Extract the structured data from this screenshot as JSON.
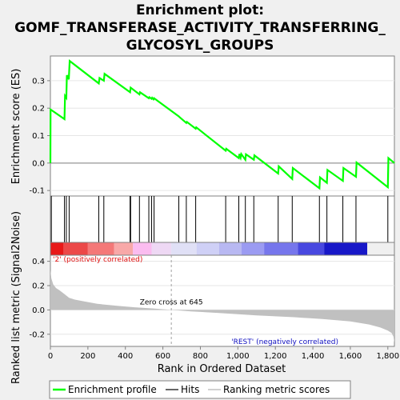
{
  "chart_data": {
    "type": "line",
    "title_lines": [
      "Enrichment plot:",
      "GOMF_TRANSFERASE_ACTIVITY_TRANSFERRING_",
      "GLYCOSYL_GROUPS"
    ],
    "top_panel": {
      "ylabel": "Enrichment score (ES)",
      "ylim": [
        -0.12,
        0.39
      ],
      "yticks": [
        -0.1,
        0.0,
        0.1,
        0.2,
        0.3
      ],
      "ytick_labels": [
        "-0.1",
        "0.0",
        "0.1",
        "0.2",
        "0.3"
      ],
      "series": [
        {
          "name": "Enrichment profile",
          "color": "#00ff00",
          "x": [
            0,
            1,
            75,
            78,
            85,
            88,
            98,
            103,
            258,
            262,
            285,
            289,
            425,
            428,
            475,
            478,
            525,
            528,
            540,
            543,
            550,
            553,
            685,
            688,
            725,
            728,
            775,
            778,
            935,
            938,
            1005,
            1008,
            1015,
            1018,
            1040,
            1043,
            1085,
            1088,
            1215,
            1218,
            1290,
            1293,
            1435,
            1438,
            1475,
            1478,
            1560,
            1563,
            1630,
            1633,
            1800,
            1803,
            1835
          ],
          "y": [
            0.0,
            0.195,
            0.16,
            0.245,
            0.238,
            0.32,
            0.305,
            0.372,
            0.29,
            0.31,
            0.3,
            0.325,
            0.258,
            0.275,
            0.25,
            0.258,
            0.236,
            0.24,
            0.234,
            0.238,
            0.232,
            0.236,
            0.17,
            0.168,
            0.146,
            0.15,
            0.125,
            0.13,
            0.045,
            0.052,
            0.018,
            0.033,
            0.02,
            0.033,
            0.012,
            0.032,
            0.012,
            0.028,
            -0.038,
            -0.012,
            -0.058,
            -0.018,
            -0.092,
            -0.052,
            -0.072,
            -0.025,
            -0.065,
            -0.018,
            -0.05,
            0.002,
            -0.088,
            0.018,
            0.0
          ]
        }
      ]
    },
    "hits": [
      5,
      75,
      85,
      100,
      258,
      285,
      425,
      428,
      475,
      525,
      540,
      553,
      685,
      725,
      775,
      935,
      1005,
      1040,
      1085,
      1215,
      1290,
      1435,
      1475,
      1560,
      1630,
      1800
    ],
    "hits_label": "Hits",
    "heat_bar": {
      "colors": [
        "#e81818",
        "#ec4848",
        "#f47878",
        "#f8a8a8",
        "#fbbcf0",
        "#eed8f4",
        "#e0e0f6",
        "#cfd0f6",
        "#b8b8f2",
        "#9b9bf2",
        "#7676ec",
        "#4848e0",
        "#1818c8"
      ],
      "boundaries": [
        0,
        70,
        200,
        340,
        440,
        540,
        645,
        780,
        900,
        1020,
        1140,
        1320,
        1460,
        1690,
        1835
      ]
    },
    "bottom_panel": {
      "ylabel": "Ranked list metric (Signal2Noise)",
      "ylim": [
        -0.3,
        0.45
      ],
      "yticks": [
        -0.2,
        0.0,
        0.2,
        0.4
      ],
      "ytick_labels": [
        "-0.2",
        "0.0",
        "0.2",
        "0.4"
      ],
      "metric_x": [
        0,
        5,
        15,
        30,
        50,
        75,
        100,
        130,
        180,
        250,
        350,
        450,
        550,
        645,
        750,
        900,
        1100,
        1300,
        1450,
        1600,
        1700,
        1760,
        1800,
        1820,
        1830,
        1835
      ],
      "metric_y": [
        0.33,
        0.26,
        0.21,
        0.18,
        0.16,
        0.13,
        0.1,
        0.085,
        0.07,
        0.05,
        0.035,
        0.022,
        0.012,
        0.0,
        -0.012,
        -0.025,
        -0.045,
        -0.06,
        -0.075,
        -0.095,
        -0.12,
        -0.145,
        -0.17,
        -0.19,
        -0.22,
        -0.27
      ],
      "positive_label": "'2' (positively correlated)",
      "negative_label": "'REST' (negatively correlated)",
      "zero_cross_label": "Zero cross at 645",
      "zero_cross": 645
    },
    "xlabel": "Rank in Ordered Dataset",
    "xlim": [
      0,
      1835
    ],
    "xticks": [
      0,
      200,
      400,
      600,
      800,
      1000,
      1200,
      1400,
      1600,
      1800
    ],
    "xtick_labels": [
      "0",
      "200",
      "400",
      "600",
      "800",
      "1,000",
      "1,200",
      "1,400",
      "1,600",
      "1,800"
    ],
    "legend": [
      {
        "label": "Enrichment profile",
        "color": "#00ff00"
      },
      {
        "label": "Hits",
        "color": "#000000"
      },
      {
        "label": "Ranking metric scores",
        "color": "#c0c0c0"
      }
    ]
  }
}
